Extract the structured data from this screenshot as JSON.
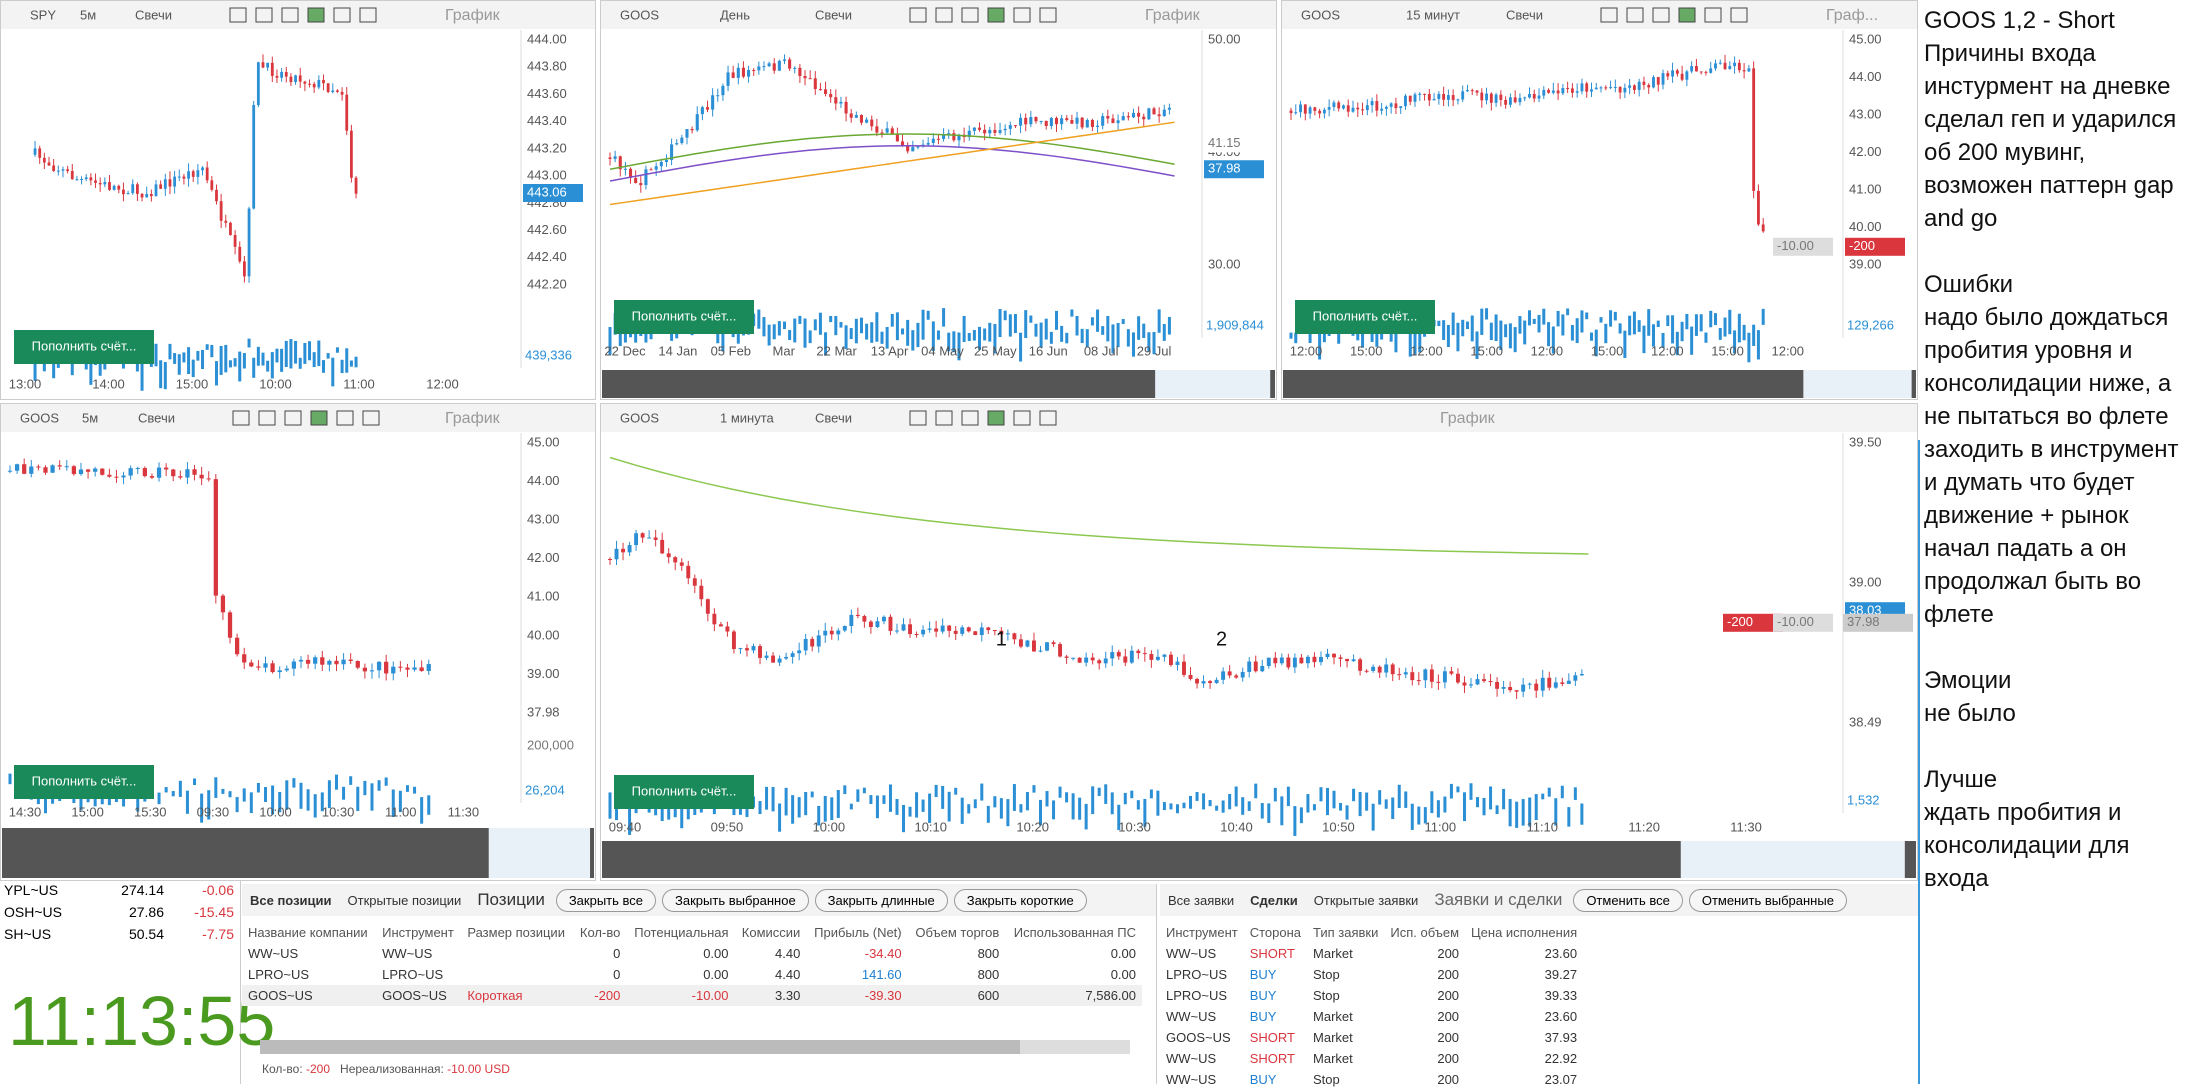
{
  "panels": [
    {
      "symbol": "SPY",
      "interval": "5м",
      "chart_type": "Свечи",
      "title": "График",
      "yticks": [
        "444.00",
        "443.80",
        "443.60",
        "443.40",
        "443.20",
        "443.00",
        "442.80",
        "442.60",
        "442.40",
        "442.20"
      ],
      "badges": [
        "443.06"
      ],
      "xticks": [
        "13:00",
        "14:00",
        "15:00",
        "10:00",
        "11:00",
        "12:00"
      ],
      "volume_label": "439,336"
    },
    {
      "symbol": "GOOS",
      "interval": "День",
      "chart_type": "Свечи",
      "title": "График",
      "yticks": [
        "50.00",
        "40.00",
        "30.00"
      ],
      "badges": [
        "41.15",
        "37.98"
      ],
      "xticks": [
        "22 Dec",
        "14 Jan",
        "05 Feb",
        "Mar",
        "22 Mar",
        "13 Apr",
        "04 May",
        "25 May",
        "16 Jun",
        "08 Jul",
        "29 Jul"
      ],
      "volume_label": "1,909,844"
    },
    {
      "symbol": "GOOS",
      "interval": "15 минут",
      "chart_type": "Свечи",
      "title": "Граф...",
      "yticks": [
        "45.00",
        "44.00",
        "43.00",
        "42.00",
        "41.00",
        "40.00",
        "39.00"
      ],
      "badges": [
        "-200",
        "-10.00"
      ],
      "xticks": [
        "12:00",
        "15:00",
        "12:00",
        "15:00",
        "12:00",
        "15:00",
        "12:00",
        "15:00",
        "12:00"
      ],
      "volume_label": "129,266"
    },
    {
      "symbol": "GOOS",
      "interval": "5м",
      "chart_type": "Свечи",
      "title": "График",
      "yticks": [
        "45.00",
        "44.00",
        "43.00",
        "42.00",
        "41.00",
        "40.00",
        "39.00",
        "37.98"
      ],
      "badges": [
        "200,000"
      ],
      "xticks": [
        "14:30",
        "15:00",
        "15:30",
        "09:30",
        "10:00",
        "10:30",
        "11:00",
        "11:30"
      ],
      "volume_label": "26,204"
    },
    {
      "symbol": "GOOS",
      "interval": "1 минута",
      "chart_type": "Свечи",
      "title": "График",
      "yticks": [
        "39.50",
        "39.00",
        "38.49"
      ],
      "badges": [
        "38.03",
        "-200",
        "-10.00",
        "37.98"
      ],
      "markers": [
        "1",
        "2"
      ],
      "xticks": [
        "09:40",
        "09:50",
        "10:00",
        "10:10",
        "10:20",
        "10:30",
        "10:40",
        "10:50",
        "11:00",
        "11:10",
        "11:20",
        "11:30"
      ],
      "volume_label": "1,532"
    }
  ],
  "deposit_button": "Пополнить счёт...",
  "quotes": [
    [
      "YPL~US",
      "274.14",
      "-0.06"
    ],
    [
      "OSH~US",
      "27.86",
      "-15.45"
    ],
    [
      "SH~US",
      "50.54",
      "-7.75"
    ]
  ],
  "clock": "11:13:55",
  "positions": {
    "tabs": [
      "Все позиции",
      "Открытые позиции"
    ],
    "title": "Позиции",
    "buttons": [
      "Закрыть все",
      "Закрыть выбранное",
      "Закрыть длинные",
      "Закрыть короткие"
    ],
    "columns": [
      "Название компании",
      "Инструмент",
      "Размер позиции",
      "Кол-во",
      "Потенциальная",
      "Комиссии",
      "Прибыль (Net)",
      "Объем торгов",
      "Использованная ПС"
    ],
    "rows": [
      [
        "WW~US",
        "WW~US",
        null,
        "0",
        "0.00",
        "4.40",
        "-34.40",
        "800",
        "0.00"
      ],
      [
        "LPRO~US",
        "LPRO~US",
        null,
        "0",
        "0.00",
        "4.40",
        "141.60",
        "800",
        "0.00"
      ],
      [
        "GOOS~US",
        "GOOS~US",
        "Короткая",
        "-200",
        "-10.00",
        "3.30",
        "-39.30",
        "600",
        "7,586.00"
      ]
    ],
    "footer": {
      "qty_label": "Кол-во:",
      "qty": "-200",
      "unreal_label": "Нереализованная:",
      "unreal": "-10.00 USD"
    }
  },
  "orders": {
    "tabs": [
      "Все заявки",
      "Сделки",
      "Открытые заявки"
    ],
    "title": "Заявки и сделки",
    "buttons": [
      "Отменить все",
      "Отменить выбранные"
    ],
    "columns": [
      "Инструмент",
      "Сторона",
      "Тип заявки",
      "Исп. объем",
      "Цена исполнения"
    ],
    "rows": [
      [
        "WW~US",
        "SHORT",
        "Market",
        "200",
        "23.60"
      ],
      [
        "LPRO~US",
        "BUY",
        "Stop",
        "200",
        "39.27"
      ],
      [
        "LPRO~US",
        "BUY",
        "Stop",
        "200",
        "39.33"
      ],
      [
        "WW~US",
        "BUY",
        "Market",
        "200",
        "23.60"
      ],
      [
        "GOOS~US",
        "SHORT",
        "Market",
        "200",
        "37.93"
      ],
      [
        "WW~US",
        "SHORT",
        "Market",
        "200",
        "22.92"
      ],
      [
        "WW~US",
        "BUY",
        "Stop",
        "200",
        "23.07"
      ]
    ]
  },
  "notes": [
    [
      "GOOS 1,2 - Short",
      "Причины входа",
      "инстурмент на дневке",
      "сделал геп и ударился",
      "об 200 мувинг,",
      "возможен паттерн gap",
      "and go"
    ],
    [
      "Ошибки",
      "надо было дождаться",
      "пробития уровня и",
      "консолидации ниже, а",
      "не пытаться во флете",
      "заходить в инструмент",
      "и думать что будет",
      "движение + рынок",
      "начал падать а он",
      "продолжал быть во",
      "флете"
    ],
    [
      "Эмоции",
      "не было"
    ],
    [
      "Лучше",
      "ждать пробития и",
      "консолидации для",
      "входа"
    ]
  ]
}
